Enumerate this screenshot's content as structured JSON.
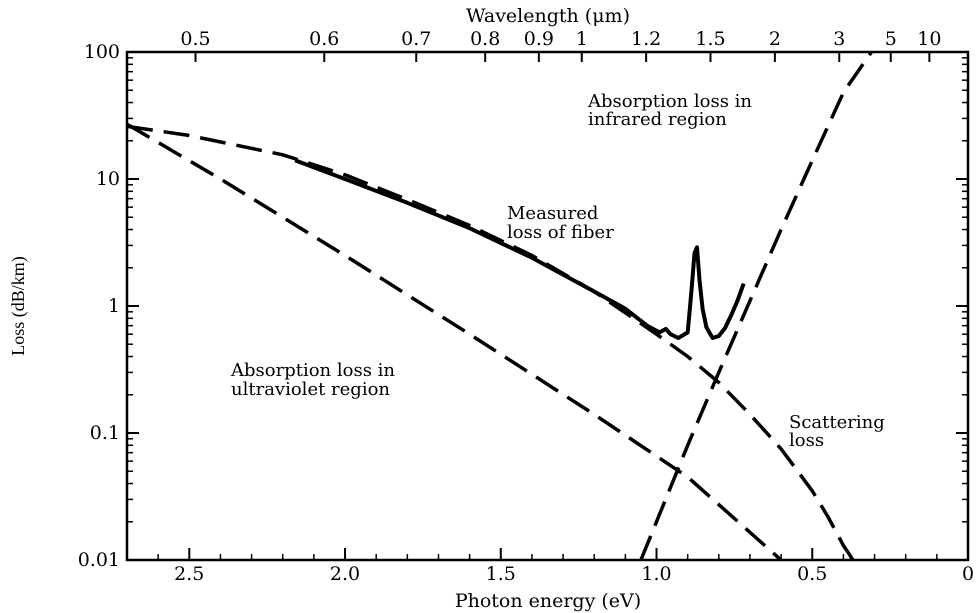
{
  "chart_data": {
    "type": "line",
    "title": "",
    "xlabel": "Photon energy (eV)",
    "x2label": "Wavelength (μm)",
    "ylabel": "Loss (dB/km)",
    "xlim": [
      2.7,
      0
    ],
    "ylim": [
      0.01,
      100
    ],
    "yscale": "log",
    "x_ticks": [
      "2.5",
      "2.0",
      "1.5",
      "1.0",
      "0.5",
      "0"
    ],
    "x_tick_values": [
      2.5,
      2.0,
      1.5,
      1.0,
      0.5,
      0
    ],
    "y_ticks": [
      "0.01",
      "0.1",
      "1",
      "10",
      "100"
    ],
    "y_tick_values": [
      0.01,
      0.1,
      1,
      10,
      100
    ],
    "x2_ticks": [
      "0.5",
      "0.6",
      "0.7",
      "0.8",
      "0.9",
      "1",
      "1.2",
      "1.5",
      "2",
      "3",
      "5",
      "10"
    ],
    "x2_tick_values": [
      0.5,
      0.6,
      0.7,
      0.8,
      0.9,
      1,
      1.2,
      1.5,
      2,
      3,
      5,
      10
    ],
    "grid": false,
    "series": [
      {
        "key": "measured",
        "style": "solid",
        "x": [
          2.16,
          2.0,
          1.8,
          1.6,
          1.4,
          1.2,
          1.1,
          1.03,
          0.99,
          0.97,
          0.955,
          0.93,
          0.9,
          0.888,
          0.878,
          0.87,
          0.862,
          0.852,
          0.84,
          0.82,
          0.8,
          0.78,
          0.76,
          0.74,
          0.72
        ],
        "y": [
          14,
          10,
          6.5,
          4.1,
          2.4,
          1.3,
          0.95,
          0.7,
          0.62,
          0.66,
          0.6,
          0.56,
          0.62,
          1.3,
          2.6,
          2.9,
          1.6,
          0.95,
          0.68,
          0.56,
          0.58,
          0.67,
          0.85,
          1.1,
          1.5
        ]
      },
      {
        "key": "scattering",
        "style": "dashed",
        "x": [
          2.7,
          2.5,
          2.2,
          2.0,
          1.8,
          1.6,
          1.4,
          1.2,
          1.0,
          0.9,
          0.8,
          0.7,
          0.6,
          0.5,
          0.45,
          0.4,
          0.38,
          0.37
        ],
        "y": [
          26,
          22,
          15.5,
          10.8,
          6.9,
          4.3,
          2.5,
          1.3,
          0.6,
          0.4,
          0.25,
          0.14,
          0.075,
          0.035,
          0.022,
          0.013,
          0.011,
          0.01
        ]
      },
      {
        "key": "uv_absorption",
        "style": "dashed",
        "x": [
          2.7,
          2.4,
          2.0,
          1.6,
          1.2,
          0.9,
          0.6
        ],
        "y": [
          27,
          10,
          2.5,
          0.6,
          0.14,
          0.045,
          0.01
        ]
      },
      {
        "key": "ir_absorption",
        "style": "dashed",
        "x": [
          1.05,
          0.9,
          0.8,
          0.7,
          0.6,
          0.5,
          0.4,
          0.31
        ],
        "y": [
          0.01,
          0.08,
          0.3,
          1.1,
          4.0,
          14,
          48,
          100
        ]
      }
    ],
    "annotations": [
      {
        "key": "ir_label",
        "lines": [
          "Absorption loss in",
          "infrared region"
        ]
      },
      {
        "key": "measured_label",
        "lines": [
          "Measured",
          "loss of fiber"
        ]
      },
      {
        "key": "uv_label",
        "lines": [
          "Absorption loss in",
          "ultraviolet region"
        ]
      },
      {
        "key": "scattering_label",
        "lines": [
          "Scattering",
          "loss"
        ]
      }
    ]
  }
}
